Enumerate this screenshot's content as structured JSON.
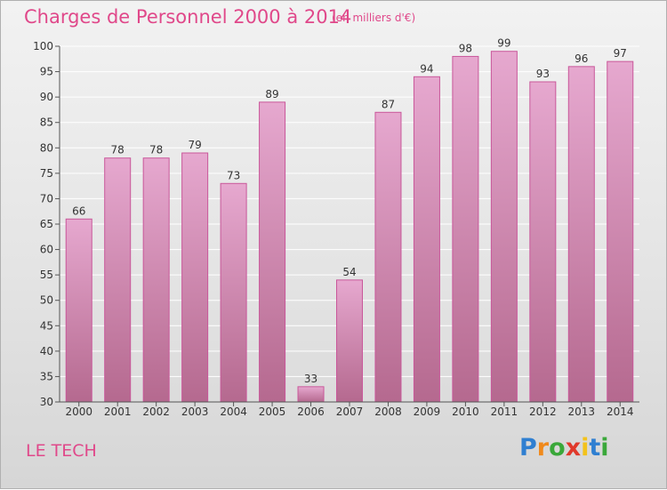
{
  "header": {
    "title": "Charges de Personnel 2000 à 2014",
    "subtitle": "(en milliers d'€)"
  },
  "footer": {
    "place": "LE TECH",
    "brand": [
      "P",
      "r",
      "o",
      "x",
      "i",
      "t",
      "i"
    ],
    "brand_colors": [
      "#2f7fd1",
      "#f08a1c",
      "#3aa83a",
      "#e0392b",
      "#f3c21b",
      "#2f7fd1",
      "#3aa83a"
    ]
  },
  "chart_data": {
    "type": "bar",
    "categories": [
      "2000",
      "2001",
      "2002",
      "2003",
      "2004",
      "2005",
      "2006",
      "2007",
      "2008",
      "2009",
      "2010",
      "2011",
      "2012",
      "2013",
      "2014"
    ],
    "values": [
      66,
      78,
      78,
      79,
      73,
      89,
      33,
      54,
      87,
      94,
      98,
      99,
      93,
      96,
      97
    ],
    "ylim": [
      30,
      100
    ],
    "yticks": [
      30,
      35,
      40,
      45,
      50,
      55,
      60,
      65,
      70,
      75,
      80,
      85,
      90,
      95,
      100
    ],
    "grid": true,
    "bar_color_top": "#e6a8cf",
    "bar_color_bottom": "#b5698f"
  }
}
